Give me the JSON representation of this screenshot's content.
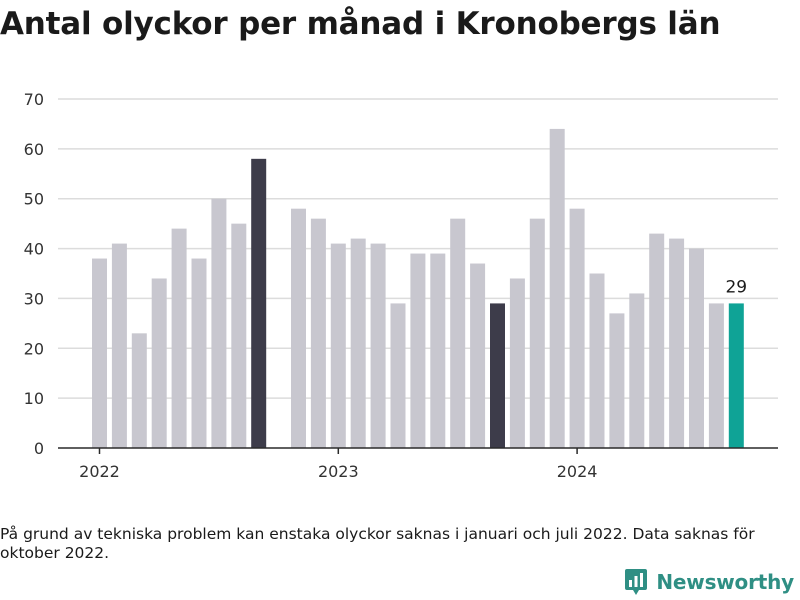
{
  "title": "Antal olyckor per månad i Kronobergs län",
  "note": "På grund av tekniska problem kan enstaka olyckor saknas i januari och juli 2022. Data saknas för oktober 2022.",
  "brand": {
    "name": "Newsworthy",
    "icon": "newsworthy-logo-icon",
    "color": "#2f8f84"
  },
  "chart_data": {
    "type": "bar",
    "title": "Antal olyckor per månad i Kronobergs län",
    "xlabel": "",
    "ylabel": "",
    "ylim": [
      0,
      70
    ],
    "yticks": [
      0,
      10,
      20,
      30,
      40,
      50,
      60,
      70
    ],
    "xticks": [
      "2022",
      "2023",
      "2024"
    ],
    "grid": true,
    "colors": {
      "default": "#c8c7cf",
      "highlight": "#3d3c4a",
      "latest": "#0fa396"
    },
    "months": [
      "2022-01",
      "2022-02",
      "2022-03",
      "2022-04",
      "2022-05",
      "2022-06",
      "2022-07",
      "2022-08",
      "2022-09",
      "2022-10",
      "2022-11",
      "2022-12",
      "2023-01",
      "2023-02",
      "2023-03",
      "2023-04",
      "2023-05",
      "2023-06",
      "2023-07",
      "2023-08",
      "2023-09",
      "2023-10",
      "2023-11",
      "2023-12",
      "2024-01",
      "2024-02",
      "2024-03",
      "2024-04",
      "2024-05",
      "2024-06",
      "2024-07",
      "2024-08",
      "2024-09",
      "2024-10"
    ],
    "values": [
      38,
      41,
      23,
      34,
      44,
      38,
      50,
      45,
      58,
      null,
      48,
      46,
      41,
      42,
      41,
      29,
      39,
      39,
      46,
      37,
      29,
      34,
      46,
      64,
      48,
      35,
      27,
      31,
      43,
      42,
      40,
      29,
      29,
      null
    ],
    "highlight": [
      "2022-09",
      "2023-09"
    ],
    "latest": "2024-09",
    "data_label": {
      "month": "2024-09",
      "text": "29"
    }
  }
}
